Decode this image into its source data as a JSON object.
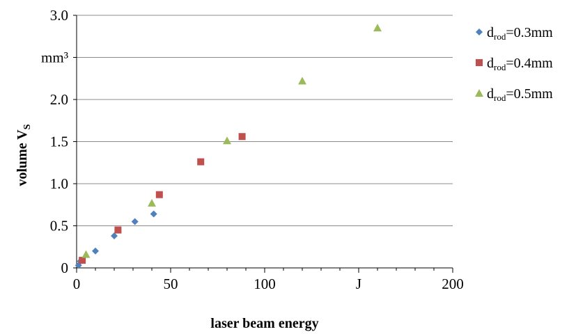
{
  "chart_data": {
    "type": "scatter",
    "xlabel": "laser beam energy",
    "ylabel": "volume V",
    "ylabel_sub": "S",
    "xlim": [
      0,
      200
    ],
    "ylim": [
      0,
      3.0
    ],
    "x_ticks": [
      {
        "value": 0,
        "label": "0"
      },
      {
        "value": 50,
        "label": "50"
      },
      {
        "value": 100,
        "label": "100"
      },
      {
        "value": 150,
        "label": "J"
      },
      {
        "value": 200,
        "label": "200"
      }
    ],
    "y_ticks": [
      {
        "value": 0,
        "label": "0"
      },
      {
        "value": 0.5,
        "label": "0.5"
      },
      {
        "value": 1.0,
        "label": "1.0"
      },
      {
        "value": 1.5,
        "label": "1.5"
      },
      {
        "value": 2.0,
        "label": "2.0"
      },
      {
        "value": 2.5,
        "label": "mm³"
      },
      {
        "value": 3.0,
        "label": "3.0"
      }
    ],
    "grid": "horizontal",
    "legend_position": "right",
    "series": [
      {
        "label_main": "d",
        "label_sub": "rod",
        "label_rest": "=0.3mm",
        "marker": "diamond",
        "color": "#4F81BD",
        "x": [
          1,
          2,
          10,
          20,
          31,
          41
        ],
        "y": [
          0.03,
          0.08,
          0.2,
          0.38,
          0.55,
          0.64
        ]
      },
      {
        "label_main": "d",
        "label_sub": "rod",
        "label_rest": "=0.4mm",
        "marker": "square",
        "color": "#C0504D",
        "x": [
          3,
          22,
          44,
          66,
          88
        ],
        "y": [
          0.09,
          0.45,
          0.87,
          1.26,
          1.56
        ]
      },
      {
        "label_main": "d",
        "label_sub": "rod",
        "label_rest": "=0.5mm",
        "marker": "triangle",
        "color": "#9BBB59",
        "x": [
          5,
          40,
          80,
          120,
          160
        ],
        "y": [
          0.16,
          0.77,
          1.51,
          2.22,
          2.85
        ]
      }
    ]
  }
}
